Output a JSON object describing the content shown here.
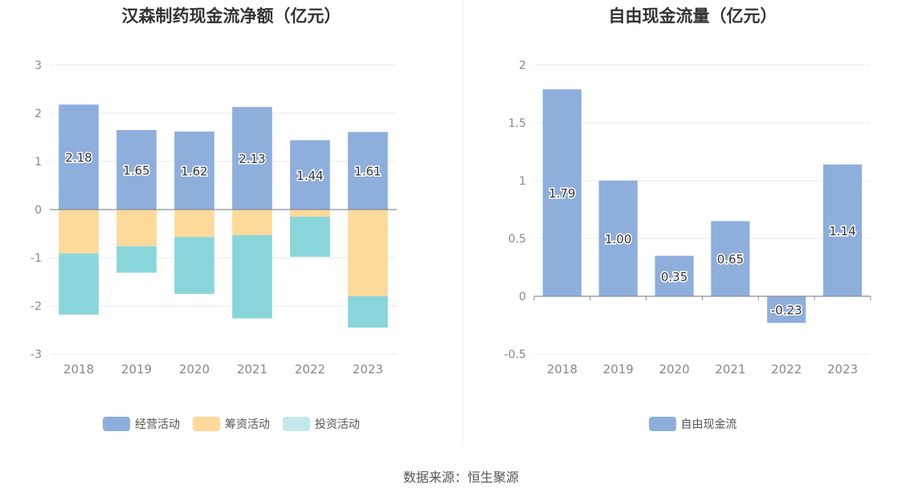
{
  "charts": [
    {
      "title": "汉森制药现金流净额（亿元）",
      "legend": [
        {
          "name": "经营活动",
          "color": "#8eaedc"
        },
        {
          "name": "筹资活动",
          "color": "#fdd99a"
        },
        {
          "name": "投资活动",
          "color": "#89d6da"
        }
      ]
    },
    {
      "title": "自由现金流量（亿元）",
      "legend": [
        {
          "name": "自由现金流",
          "color": "#8eaedc"
        }
      ]
    }
  ],
  "source": "数据来源：恒生聚源",
  "chart_data": [
    {
      "type": "bar",
      "stacked": true,
      "title": "汉森制药现金流净额（亿元）",
      "categories": [
        "2018",
        "2019",
        "2020",
        "2021",
        "2022",
        "2023"
      ],
      "ylim": [
        -3,
        3
      ],
      "yticks": [
        -3,
        -2,
        -1,
        0,
        1,
        2,
        3
      ],
      "grid": true,
      "legend_position": "bottom",
      "series": [
        {
          "name": "经营活动",
          "color": "#8eaedc",
          "values": [
            2.18,
            1.65,
            1.62,
            2.13,
            1.44,
            1.61
          ],
          "labels": [
            "2.18",
            "1.65",
            "1.62",
            "2.13",
            "1.44",
            "1.61"
          ]
        },
        {
          "name": "筹资活动",
          "color": "#fdd99a",
          "values": [
            -0.91,
            -0.76,
            -0.57,
            -0.53,
            -0.15,
            -1.8
          ]
        },
        {
          "name": "投资活动",
          "color": "#89d6da",
          "values": [
            -1.27,
            -0.55,
            -1.18,
            -1.73,
            -0.83,
            -0.65
          ]
        }
      ]
    },
    {
      "type": "bar",
      "title": "自由现金流量（亿元）",
      "categories": [
        "2018",
        "2019",
        "2020",
        "2021",
        "2022",
        "2023"
      ],
      "ylim": [
        -0.5,
        2
      ],
      "yticks": [
        -0.5,
        0,
        0.5,
        1,
        1.5,
        2
      ],
      "grid": true,
      "legend_position": "bottom",
      "series": [
        {
          "name": "自由现金流",
          "color": "#8eaedc",
          "values": [
            1.79,
            1.0,
            0.35,
            0.65,
            -0.23,
            1.14
          ],
          "labels": [
            "1.79",
            "1.00",
            "0.35",
            "0.65",
            "-0.23",
            "1.14"
          ]
        }
      ]
    }
  ]
}
